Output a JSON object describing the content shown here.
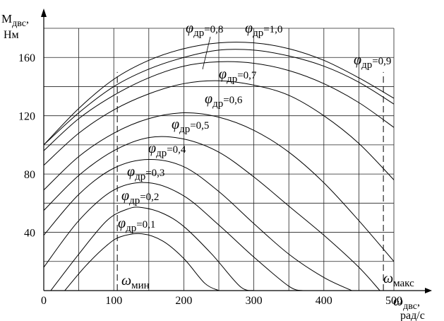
{
  "chart_data": {
    "type": "line",
    "title": "",
    "ylabel": {
      "main": "M",
      "sub": "двс",
      "suffix": ",",
      "unit": "Нм"
    },
    "xlabel": {
      "main": "ω",
      "sub": "двс",
      "suffix": ",",
      "unit": "рад/с"
    },
    "xlim": [
      0,
      500
    ],
    "ylim": [
      0,
      180
    ],
    "x_ticks": [
      0,
      100,
      200,
      300,
      400,
      500
    ],
    "y_ticks": [
      40,
      80,
      120,
      160
    ],
    "grid": true,
    "phi_symbol": "φ",
    "phi_sub": "др",
    "series": [
      {
        "name": "0,1",
        "x": [
          30,
          60,
          90,
          110,
          140,
          170,
          200,
          230,
          250
        ],
        "y": [
          0,
          17,
          31,
          37,
          39,
          34,
          22,
          5,
          0
        ]
      },
      {
        "name": "0,2",
        "x": [
          10,
          50,
          90,
          120,
          140,
          170,
          200,
          240,
          280,
          300
        ],
        "y": [
          0,
          25,
          48,
          56,
          57,
          53,
          44,
          25,
          3,
          0
        ]
      },
      {
        "name": "0,3",
        "x": [
          0,
          50,
          100,
          150,
          200,
          250,
          300,
          350,
          370
        ],
        "y": [
          16,
          48,
          69,
          74,
          65,
          45,
          23,
          3,
          0
        ]
      },
      {
        "name": "0,4",
        "x": [
          0,
          50,
          100,
          150,
          200,
          250,
          300,
          350,
          400,
          440
        ],
        "y": [
          38,
          66,
          84,
          90,
          85,
          68,
          46,
          25,
          9,
          0
        ]
      },
      {
        "name": "0,5",
        "x": [
          0,
          50,
          100,
          150,
          200,
          250,
          300,
          350,
          400,
          450,
          480
        ],
        "y": [
          55,
          79,
          96,
          105,
          104,
          95,
          78,
          58,
          38,
          16,
          0
        ]
      },
      {
        "name": "0,6",
        "x": [
          0,
          50,
          100,
          150,
          200,
          250,
          300,
          350,
          400,
          450,
          500
        ],
        "y": [
          69,
          92,
          108,
          118,
          122,
          119,
          110,
          95,
          74,
          48,
          20
        ]
      },
      {
        "name": "0,7",
        "x": [
          0,
          50,
          100,
          150,
          200,
          250,
          300,
          350,
          400,
          450,
          500
        ],
        "y": [
          86,
          108,
          124,
          135,
          142,
          144,
          141,
          134,
          120,
          101,
          76
        ]
      },
      {
        "name": "0,8",
        "x": [
          0,
          50,
          100,
          150,
          200,
          250,
          300,
          350,
          400,
          450,
          500
        ],
        "y": [
          96,
          118,
          134,
          146,
          154,
          157,
          156,
          151,
          142,
          129,
          112
        ]
      },
      {
        "name": "0,9",
        "x": [
          0,
          50,
          100,
          150,
          200,
          250,
          300,
          350,
          400,
          450,
          500
        ],
        "y": [
          100,
          122,
          140,
          152,
          160,
          165,
          165,
          161,
          154,
          143,
          128
        ]
      },
      {
        "name": "1,0",
        "x": [
          0,
          50,
          100,
          150,
          200,
          250,
          300,
          350,
          400,
          450,
          500
        ],
        "y": [
          100,
          125,
          145,
          158,
          166,
          170,
          170,
          166,
          158,
          146,
          132
        ]
      }
    ],
    "phi_labels": [
      {
        "series": "0,1",
        "value": "=0,1"
      },
      {
        "series": "0,2",
        "value": "=0,2"
      },
      {
        "series": "0,3",
        "value": "=0,3"
      },
      {
        "series": "0,4",
        "value": "=0,4"
      },
      {
        "series": "0,5",
        "value": "=0,5"
      },
      {
        "series": "0,6",
        "value": "=0,6"
      },
      {
        "series": "0,7",
        "value": "=0,7"
      },
      {
        "series": "0,8",
        "value": "=0,8"
      },
      {
        "series": "0,9",
        "value": "=0,9"
      },
      {
        "series": "1,0",
        "value": "=1,0"
      }
    ],
    "annotations": [
      {
        "id": "omega-min",
        "main": "ω",
        "sub": "мин",
        "x": 105
      },
      {
        "id": "omega-max",
        "main": "ω",
        "sub": "макс",
        "x": 485
      }
    ]
  }
}
